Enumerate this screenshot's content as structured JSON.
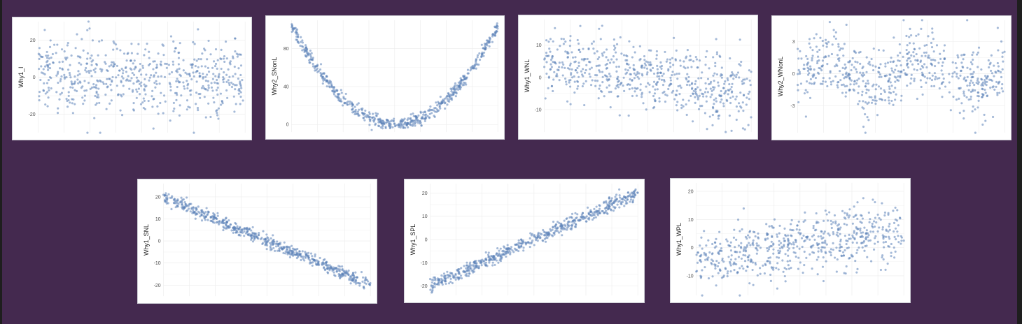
{
  "theme": {
    "background": "#44294f",
    "point_color": "#5b82b8",
    "grid_color": "#ebebeb"
  },
  "chart_data": [
    {
      "type": "scatter",
      "ylabel": "Why1_I",
      "yticks": [
        -20,
        0,
        20
      ],
      "ylim": [
        -30,
        30
      ],
      "pattern": "noise",
      "n_points": 600,
      "params": {
        "sd": 10
      }
    },
    {
      "type": "scatter",
      "ylabel": "Why2_SNonL",
      "yticks": [
        0,
        40,
        80
      ],
      "ylim": [
        -8,
        110
      ],
      "pattern": "quadratic",
      "n_points": 600,
      "params": {
        "amp": 105,
        "noise": 3.5
      }
    },
    {
      "type": "scatter",
      "ylabel": "Why1_WNL",
      "yticks": [
        -10,
        0,
        10
      ],
      "ylim": [
        -17,
        18
      ],
      "pattern": "linear",
      "n_points": 600,
      "params": {
        "start": 5,
        "end": -5,
        "noise": 5
      }
    },
    {
      "type": "scatter",
      "ylabel": "Why2_WNonL",
      "yticks": [
        -3,
        0,
        3
      ],
      "ylim": [
        -5.5,
        5
      ],
      "pattern": "wave",
      "n_points": 600,
      "params": {
        "amp": 1.3,
        "cycles": 2,
        "noise": 1.5
      }
    },
    {
      "type": "scatter",
      "ylabel": "Why1_SNL",
      "yticks": [
        -20,
        -10,
        0,
        10,
        20
      ],
      "ylim": [
        -25,
        26
      ],
      "pattern": "linear",
      "n_points": 600,
      "params": {
        "start": 20,
        "end": -20,
        "noise": 1.4
      }
    },
    {
      "type": "scatter",
      "ylabel": "Why1_SPL",
      "yticks": [
        -20,
        -10,
        0,
        10,
        20
      ],
      "ylim": [
        -24,
        24
      ],
      "pattern": "linear",
      "n_points": 600,
      "params": {
        "start": -20,
        "end": 20,
        "noise": 1.4
      }
    },
    {
      "type": "scatter",
      "ylabel": "Why1_WPL",
      "yticks": [
        -10,
        0,
        10,
        20
      ],
      "ylim": [
        -17,
        23
      ],
      "pattern": "linear",
      "n_points": 600,
      "params": {
        "start": -4,
        "end": 6,
        "noise": 5
      }
    }
  ]
}
